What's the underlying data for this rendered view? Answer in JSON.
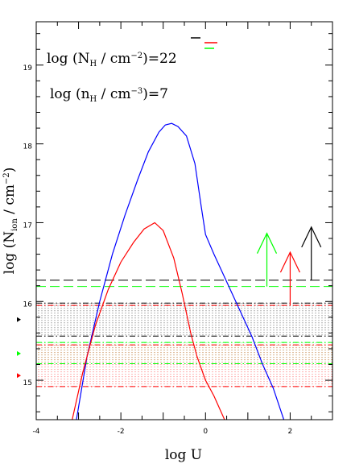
{
  "chart_data": {
    "type": "line",
    "xlabel": "log U",
    "ylabel": "log (N_ion / cm^-2)",
    "xlim": [
      -4,
      3
    ],
    "ylim": [
      14.5,
      19.55
    ],
    "x_ticks": [
      -4,
      -2,
      0,
      2
    ],
    "y_ticks": [
      15,
      16,
      17,
      18,
      19
    ],
    "annotations": [
      {
        "lines": [
          "log (N",
          "H",
          " / cm",
          "−2",
          ")=22"
        ]
      },
      {
        "lines": [
          "log (n",
          "H",
          " / cm",
          "−3",
          ")=7"
        ]
      }
    ],
    "series": [
      {
        "color": "#0000ff",
        "points": [
          [
            -3.05,
            14.5
          ],
          [
            -2.8,
            15.3
          ],
          [
            -2.5,
            16.0
          ],
          [
            -2.2,
            16.6
          ],
          [
            -1.9,
            17.1
          ],
          [
            -1.6,
            17.55
          ],
          [
            -1.35,
            17.9
          ],
          [
            -1.1,
            18.15
          ],
          [
            -0.95,
            18.24
          ],
          [
            -0.8,
            18.26
          ],
          [
            -0.65,
            18.22
          ],
          [
            -0.45,
            18.1
          ],
          [
            -0.25,
            17.75
          ],
          [
            -0.1,
            17.2
          ],
          [
            0.0,
            16.85
          ],
          [
            0.2,
            16.6
          ],
          [
            0.5,
            16.25
          ],
          [
            0.8,
            15.9
          ],
          [
            1.1,
            15.55
          ],
          [
            1.35,
            15.2
          ],
          [
            1.6,
            14.9
          ],
          [
            1.85,
            14.5
          ]
        ]
      },
      {
        "color": "#ff0000",
        "points": [
          [
            -3.15,
            14.5
          ],
          [
            -2.9,
            15.1
          ],
          [
            -2.6,
            15.7
          ],
          [
            -2.3,
            16.15
          ],
          [
            -2.0,
            16.5
          ],
          [
            -1.7,
            16.75
          ],
          [
            -1.45,
            16.92
          ],
          [
            -1.2,
            17.0
          ],
          [
            -1.0,
            16.9
          ],
          [
            -0.75,
            16.55
          ],
          [
            -0.55,
            16.1
          ],
          [
            -0.35,
            15.6
          ],
          [
            -0.2,
            15.3
          ],
          [
            0.0,
            15.0
          ],
          [
            0.2,
            14.8
          ],
          [
            0.45,
            14.5
          ]
        ]
      }
    ],
    "horizontal_lines": [
      {
        "y": 16.27,
        "color": "#000000",
        "style": "long-dash"
      },
      {
        "y": 16.19,
        "color": "#00ff00",
        "style": "long-dash"
      },
      {
        "y": 15.98,
        "color": "#000000",
        "style": "dash-dot"
      },
      {
        "y": 15.95,
        "color": "#ff0000",
        "style": "dash-dot"
      },
      {
        "y": 15.56,
        "color": "#000000",
        "style": "dash-dot"
      },
      {
        "y": 15.48,
        "color": "#00ff00",
        "style": "dash-dot"
      },
      {
        "y": 15.45,
        "color": "#ff0000",
        "style": "dash-dot"
      },
      {
        "y": 15.21,
        "color": "#00ff00",
        "style": "dash-dot"
      },
      {
        "y": 14.92,
        "color": "#ff0000",
        "style": "dash-dot"
      }
    ],
    "shaded_bands": [
      {
        "y0": 15.56,
        "y1": 15.98,
        "color": "#000000"
      },
      {
        "y0": 15.21,
        "y1": 15.48,
        "color": "#00ff00"
      },
      {
        "y0": 14.92,
        "y1": 15.45,
        "color": "#ff0000"
      }
    ],
    "lower_limit_arrows": [
      {
        "x": 2.5,
        "y": 16.27,
        "color": "#000000"
      },
      {
        "x": 1.45,
        "y": 16.19,
        "color": "#00ff00"
      },
      {
        "x": 2.0,
        "y": 15.95,
        "color": "#ff0000"
      }
    ],
    "left_markers": [
      {
        "y": 15.77,
        "color": "#000000"
      },
      {
        "y": 15.34,
        "color": "#00ff00"
      },
      {
        "y": 15.06,
        "color": "#ff0000"
      }
    ],
    "legend": [
      {
        "color": "#000000"
      },
      {
        "color": "#ff0000"
      },
      {
        "color": "#00ff00"
      }
    ]
  }
}
